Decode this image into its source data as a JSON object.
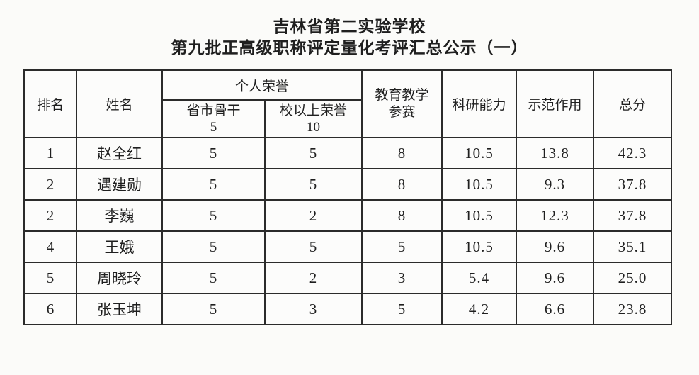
{
  "page": {
    "title": "吉林省第二实验学校",
    "subtitle": "第九批正高级职称评定量化考评汇总公示（一）"
  },
  "colors": {
    "paper": "#fbfbf9",
    "border": "#2b2b2b",
    "text": "#1f1f1f"
  },
  "table": {
    "headers": {
      "rank": "排名",
      "name": "姓名",
      "personal_honor_group": "个人荣誉",
      "sub_provincial_label": "省市骨干",
      "sub_provincial_max": "5",
      "sub_school_label": "校以上荣誉",
      "sub_school_max": "10",
      "teaching_competition_line1": "教育教学",
      "teaching_competition_line2": "参赛",
      "research": "科研能力",
      "demonstration": "示范作用",
      "total": "总分"
    },
    "rows": [
      {
        "rank": "1",
        "name": "赵全红",
        "provincial": "5",
        "school": "5",
        "competition": "8",
        "research": "10.5",
        "demonstration": "13.8",
        "total": "42.3"
      },
      {
        "rank": "2",
        "name": "遇建勋",
        "provincial": "5",
        "school": "5",
        "competition": "8",
        "research": "10.5",
        "demonstration": "9.3",
        "total": "37.8"
      },
      {
        "rank": "2",
        "name": "李巍",
        "provincial": "5",
        "school": "2",
        "competition": "8",
        "research": "10.5",
        "demonstration": "12.3",
        "total": "37.8"
      },
      {
        "rank": "4",
        "name": "王娥",
        "provincial": "5",
        "school": "5",
        "competition": "5",
        "research": "10.5",
        "demonstration": "9.6",
        "total": "35.1"
      },
      {
        "rank": "5",
        "name": "周晓玲",
        "provincial": "5",
        "school": "2",
        "competition": "3",
        "research": "5.4",
        "demonstration": "9.6",
        "total": "25.0"
      },
      {
        "rank": "6",
        "name": "张玉坤",
        "provincial": "5",
        "school": "3",
        "competition": "5",
        "research": "4.2",
        "demonstration": "6.6",
        "total": "23.8"
      }
    ]
  }
}
